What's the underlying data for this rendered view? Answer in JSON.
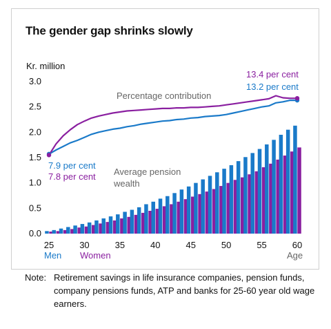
{
  "title": "The gender gap shrinks slowly",
  "chart_data": {
    "type": "bar",
    "ylabel": "Kr. million",
    "xlabel": "Age",
    "ylim": [
      0,
      3.0
    ],
    "yticks": [
      "0.0",
      "0.5",
      "1.0",
      "1.5",
      "2.0",
      "2.5",
      "3.0"
    ],
    "xticks": [
      "25",
      "30",
      "35",
      "40",
      "45",
      "50",
      "55",
      "60"
    ],
    "x_sub_labels": {
      "men": "Men",
      "women": "Women"
    },
    "grid": false,
    "colors": {
      "men": "#1a7ac9",
      "women": "#8a1fa0",
      "text": "#111111",
      "annotation": "#666666"
    },
    "categories": [
      25,
      26,
      27,
      28,
      29,
      30,
      31,
      32,
      33,
      34,
      35,
      36,
      37,
      38,
      39,
      40,
      41,
      42,
      43,
      44,
      45,
      46,
      47,
      48,
      49,
      50,
      51,
      52,
      53,
      54,
      55,
      56,
      57,
      58,
      59,
      60
    ],
    "series": [
      {
        "name": "Men",
        "kind": "bar",
        "values": [
          0.05,
          0.07,
          0.1,
          0.13,
          0.16,
          0.19,
          0.22,
          0.26,
          0.3,
          0.34,
          0.38,
          0.43,
          0.47,
          0.52,
          0.58,
          0.63,
          0.69,
          0.74,
          0.8,
          0.87,
          0.93,
          1.0,
          1.07,
          1.14,
          1.21,
          1.28,
          1.35,
          1.43,
          1.51,
          1.59,
          1.67,
          1.76,
          1.85,
          1.95,
          2.05,
          2.13
        ]
      },
      {
        "name": "Women",
        "kind": "bar",
        "values": [
          0.04,
          0.05,
          0.07,
          0.09,
          0.12,
          0.14,
          0.17,
          0.2,
          0.23,
          0.26,
          0.3,
          0.33,
          0.37,
          0.41,
          0.45,
          0.49,
          0.54,
          0.58,
          0.63,
          0.68,
          0.73,
          0.78,
          0.83,
          0.88,
          0.94,
          1.0,
          1.06,
          1.11,
          1.17,
          1.23,
          1.31,
          1.38,
          1.46,
          1.54,
          1.62,
          1.7
        ]
      },
      {
        "name": "Men",
        "kind": "line",
        "values": [
          1.57,
          1.65,
          1.72,
          1.79,
          1.84,
          1.9,
          1.96,
          2.0,
          2.03,
          2.06,
          2.08,
          2.11,
          2.13,
          2.16,
          2.18,
          2.2,
          2.22,
          2.23,
          2.25,
          2.26,
          2.28,
          2.29,
          2.31,
          2.32,
          2.33,
          2.35,
          2.38,
          2.41,
          2.44,
          2.47,
          2.5,
          2.52,
          2.58,
          2.6,
          2.63,
          2.63
        ]
      },
      {
        "name": "Women",
        "kind": "line",
        "values": [
          1.55,
          1.77,
          1.93,
          2.05,
          2.15,
          2.22,
          2.28,
          2.32,
          2.35,
          2.38,
          2.4,
          2.42,
          2.43,
          2.44,
          2.45,
          2.46,
          2.47,
          2.47,
          2.48,
          2.48,
          2.49,
          2.49,
          2.5,
          2.51,
          2.52,
          2.54,
          2.56,
          2.58,
          2.6,
          2.62,
          2.64,
          2.66,
          2.72,
          2.68,
          2.67,
          2.67
        ]
      }
    ],
    "annotations": {
      "line_label": "Percentage contribution",
      "bar_label_1": "Average pension",
      "bar_label_2": "wealth",
      "men_start": "7.9 per cent",
      "women_start": "7.8 per cent",
      "women_end": "13.4 per cent",
      "men_end": "13.2 per cent"
    }
  },
  "note": {
    "label": "Note:",
    "text": "Retirement savings in life insurance companies, pension funds, company pensions funds, ATP and banks for 25-60 year old wage earners."
  }
}
